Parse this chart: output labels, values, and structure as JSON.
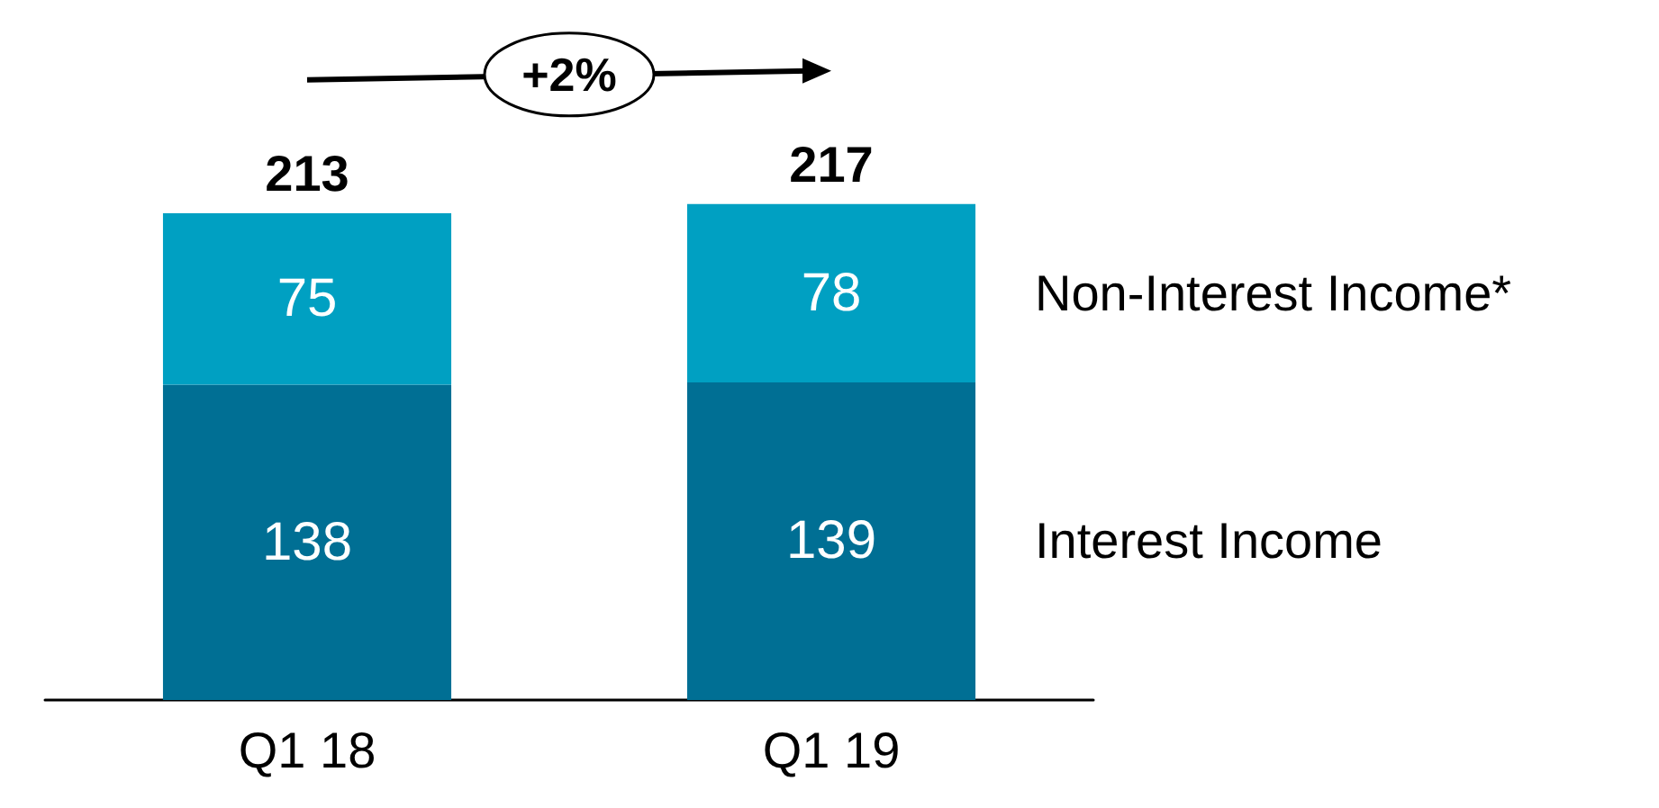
{
  "chart_data": {
    "type": "bar",
    "stacked": true,
    "categories": [
      "Q1 18",
      "Q1 19"
    ],
    "series": [
      {
        "name": "Interest Income",
        "color": "#006f94",
        "values": [
          138,
          139
        ]
      },
      {
        "name": "Non-Interest Income*",
        "color": "#00a0c2",
        "values": [
          75,
          78
        ]
      }
    ],
    "data_labels": true,
    "totals": [
      "213",
      "217"
    ],
    "annotations": [
      "+2%"
    ],
    "legend": "right"
  }
}
